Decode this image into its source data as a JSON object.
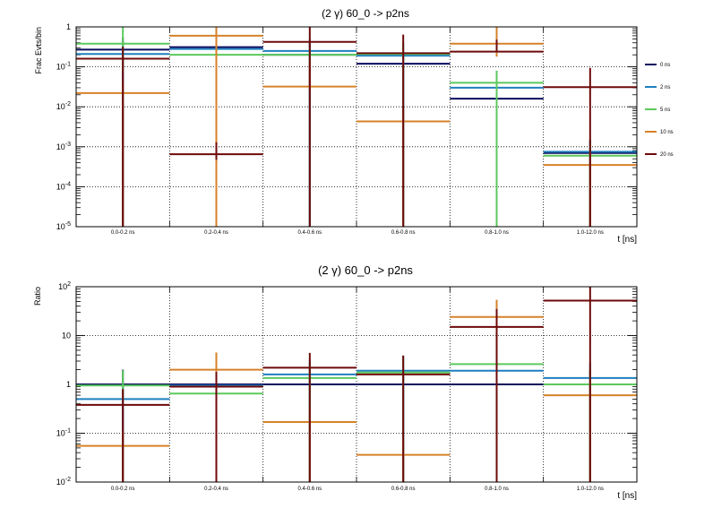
{
  "legend": {
    "entries": [
      {
        "label": "0 ns",
        "color": "#0a0a5e"
      },
      {
        "label": "2 ns",
        "color": "#1f7fbf"
      },
      {
        "label": "5 ns",
        "color": "#5cc95c"
      },
      {
        "label": "10 ns",
        "color": "#d6822a"
      },
      {
        "label": "20 ns",
        "color": "#6e0a0a"
      }
    ]
  },
  "chart_data": [
    {
      "type": "step-histogram",
      "title": "(2 γ) 60_0 -> p2ns",
      "ylabel": "Frac Evts/bin",
      "xlabel": "t [ns]",
      "yscale": "log",
      "ylim": [
        1e-05,
        1
      ],
      "y_ticks": [
        {
          "value": 1,
          "base": "1",
          "exp": ""
        },
        {
          "value": 0.1,
          "base": "10",
          "exp": "-1"
        },
        {
          "value": 0.01,
          "base": "10",
          "exp": "-2"
        },
        {
          "value": 0.001,
          "base": "10",
          "exp": "-3"
        },
        {
          "value": 0.0001,
          "base": "10",
          "exp": "-4"
        },
        {
          "value": 1e-05,
          "base": "10",
          "exp": "-5"
        }
      ],
      "categories": [
        "0.0-0.2 ns",
        "0.2-0.4 ns",
        "0.4-0.6 ns",
        "0.6-0.8 ns",
        "0.8-1.0 ns",
        "1.0-12.0 ns"
      ],
      "series": [
        {
          "name": "0 ns",
          "values": [
            0.27,
            0.31,
            0.2,
            0.12,
            0.016,
            0.0007
          ],
          "errors": [
            [
              0.27,
              0.27
            ],
            [
              0.31,
              0.31
            ],
            [
              0.2,
              0.2
            ],
            [
              0.12,
              0.12
            ],
            [
              0.016,
              0.016
            ],
            [
              0.0007,
              0.0007
            ]
          ]
        },
        {
          "name": "2 ns",
          "values": [
            0.21,
            0.28,
            0.25,
            0.19,
            0.03,
            0.00075
          ],
          "errors": [
            [
              0.21,
              0.21
            ],
            [
              0.28,
              0.28
            ],
            [
              0.25,
              0.25
            ],
            [
              0.19,
              0.19
            ],
            [
              0.03,
              0.03
            ],
            [
              0.00075,
              0.00075
            ]
          ]
        },
        {
          "name": "5 ns",
          "values": [
            0.38,
            0.2,
            0.2,
            0.21,
            0.04,
            0.0006
          ],
          "errors": [
            [
              0.3,
              0.75
            ],
            [
              0.2,
              0.2
            ],
            [
              0.08,
              0.1
            ],
            [
              0.21,
              0.21
            ],
            [
              0.04,
              0.04
            ],
            [
              0.0006,
              0.0006
            ]
          ]
        },
        {
          "name": "10 ns",
          "values": [
            0.022,
            0.6,
            0.032,
            0.0043,
            0.38,
            0.00035
          ],
          "errors": [
            [
              0.022,
              0.022
            ],
            [
              0.6,
              0.95
            ],
            [
              0.006,
              0.1
            ],
            [
              0.0043,
              0.0043
            ],
            [
              0.2,
              0.75
            ],
            [
              0.00035,
              0.00035
            ]
          ]
        },
        {
          "name": "20 ns",
          "values": [
            0.16,
            0.00065,
            0.42,
            0.22,
            0.24,
            0.031
          ],
          "errors": [
            [
              0.16,
              0.16
            ],
            [
              0.00018,
              0.00065
            ],
            [
              0.42,
              0.75
            ],
            [
              0.22,
              0.42
            ],
            [
              0.0007,
              0.24
            ],
            [
              0.031,
              0.063
            ]
          ]
        }
      ]
    },
    {
      "type": "step-histogram",
      "title": "(2 γ) 60_0 -> p2ns",
      "ylabel": "Ratio",
      "xlabel": "t [ns]",
      "yscale": "log",
      "ylim": [
        0.01,
        100
      ],
      "y_ticks": [
        {
          "value": 100,
          "base": "10",
          "exp": "2"
        },
        {
          "value": 10,
          "base": "10",
          "exp": ""
        },
        {
          "value": 1,
          "base": "1",
          "exp": ""
        },
        {
          "value": 0.1,
          "base": "10",
          "exp": "-1"
        },
        {
          "value": 0.01,
          "base": "10",
          "exp": "-2"
        }
      ],
      "categories": [
        "0.0-0.2 ns",
        "0.2-0.4 ns",
        "0.4-0.6 ns",
        "0.6-0.8 ns",
        "0.8-1.0 ns",
        "1.0-12.0 ns"
      ],
      "series": [
        {
          "name": "0 ns",
          "values": [
            1,
            1,
            1,
            1,
            1,
            1
          ],
          "errors": [
            [
              1,
              1
            ],
            [
              1,
              1
            ],
            [
              1,
              1
            ],
            [
              1,
              1
            ],
            [
              1,
              1
            ],
            [
              1,
              1
            ]
          ]
        },
        {
          "name": "2 ns",
          "values": [
            0.5,
            0.95,
            1.6,
            1.9,
            1.9,
            1.35
          ],
          "errors": [
            [
              0.5,
              0.5
            ],
            [
              0.95,
              0.95
            ],
            [
              1.6,
              1.6
            ],
            [
              1.9,
              1.9
            ],
            [
              1.9,
              1.9
            ],
            [
              1.35,
              1.35
            ]
          ]
        },
        {
          "name": "5 ns",
          "values": [
            0.95,
            0.65,
            1.35,
            1.75,
            2.6,
            1.0
          ],
          "errors": [
            [
              0.5,
              1.0
            ],
            [
              0.65,
              0.65
            ],
            [
              1.35,
              1.35
            ],
            [
              1.75,
              1.75
            ],
            [
              2.6,
              2.6
            ],
            [
              1.0,
              1.0
            ]
          ]
        },
        {
          "name": "10 ns",
          "values": [
            0.055,
            2.0,
            0.17,
            0.036,
            24,
            0.6
          ],
          "errors": [
            [
              0.055,
              0.055
            ],
            [
              1.99,
              2.5
            ],
            [
              0.17,
              0.17
            ],
            [
              0.036,
              0.036
            ],
            [
              12,
              30
            ],
            [
              0.6,
              0.6
            ]
          ]
        },
        {
          "name": "20 ns",
          "values": [
            0.38,
            0.9,
            2.2,
            1.6,
            15,
            52
          ],
          "errors": [
            [
              0.38,
              0.42
            ],
            [
              0.9,
              0.9
            ],
            [
              2.2,
              2.2
            ],
            [
              1.6,
              2.3
            ],
            [
              15,
              20
            ],
            [
              52,
              48
            ]
          ]
        }
      ]
    }
  ]
}
